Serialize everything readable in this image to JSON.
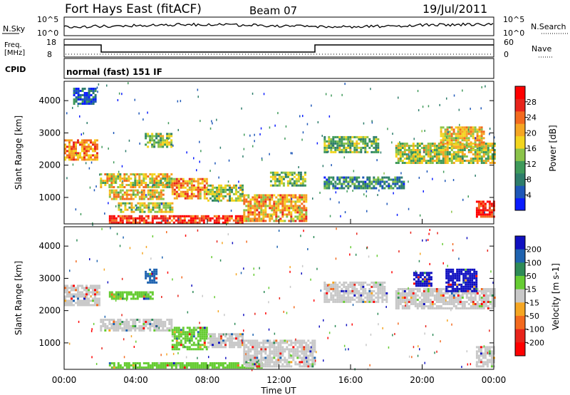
{
  "header": {
    "title": "Fort Hays East (fitACF)",
    "beam": "Beam 07",
    "date": "19/Jul/2011"
  },
  "panels": {
    "nsky": {
      "label": "N.Sky",
      "tick_top": "10^5",
      "tick_bottom": "10^0"
    },
    "nsearch": {
      "label": "N.Search",
      "tick_top": "10^5",
      "tick_bottom": "10^0"
    },
    "freq": {
      "label_line1": "Freq.",
      "label_line2": "[MHz]",
      "tick_top": "18",
      "tick_bottom": "8"
    },
    "nave": {
      "label": "Nave",
      "tick_top": "60",
      "tick_bottom": "0"
    },
    "cpid": {
      "label": "CPID",
      "text": "normal (fast) 151 IF"
    }
  },
  "chart_data": [
    {
      "type": "heatmap",
      "name": "power",
      "ylabel": "Slant Range [km]",
      "xlabel": "Time UT",
      "yticks": [
        "1000",
        "2000",
        "3000",
        "4000"
      ],
      "ytick_values": [
        1000,
        2000,
        3000,
        4000
      ],
      "ylim": [
        180,
        4600
      ],
      "xticks": [
        "00:00",
        "04:00",
        "08:00",
        "12:00",
        "16:00",
        "20:00",
        "00:00"
      ],
      "xlim_hours": [
        0,
        24
      ],
      "colorbar": {
        "label": "Power [dB]",
        "ticks": [
          "4",
          "8",
          "12",
          "16",
          "20",
          "24",
          "28"
        ],
        "colors": [
          "#0a1cff",
          "#1e57b8",
          "#2e7d6b",
          "#3f9a5a",
          "#8bc34a",
          "#f2d51e",
          "#f5a623",
          "#f36a1e",
          "#e8241b",
          "#ff0000"
        ]
      },
      "regions": [
        {
          "t0": 0.0,
          "t1": 1.9,
          "r0": 2200,
          "r1": 2800,
          "level": 0.72
        },
        {
          "t0": 0.5,
          "t1": 1.8,
          "r0": 3900,
          "r1": 4400,
          "level": 0.15
        },
        {
          "t0": 2.0,
          "t1": 6.0,
          "r0": 1350,
          "r1": 1750,
          "level": 0.55
        },
        {
          "t0": 2.5,
          "t1": 5.5,
          "r0": 950,
          "r1": 1250,
          "level": 0.6
        },
        {
          "t0": 3.0,
          "t1": 6.0,
          "r0": 550,
          "r1": 850,
          "level": 0.5
        },
        {
          "t0": 4.5,
          "t1": 6.0,
          "r0": 2600,
          "r1": 3000,
          "level": 0.45
        },
        {
          "t0": 6.0,
          "t1": 8.0,
          "r0": 1000,
          "r1": 1600,
          "level": 0.7
        },
        {
          "t0": 8.0,
          "t1": 10.0,
          "r0": 900,
          "r1": 1400,
          "level": 0.45
        },
        {
          "t0": 2.5,
          "t1": 10.0,
          "r0": 250,
          "r1": 450,
          "level": 0.9
        },
        {
          "t0": 10.0,
          "t1": 13.5,
          "r0": 300,
          "r1": 1100,
          "level": 0.65
        },
        {
          "t0": 11.5,
          "t1": 13.5,
          "r0": 1400,
          "r1": 1800,
          "level": 0.4
        },
        {
          "t0": 14.5,
          "t1": 17.5,
          "r0": 2400,
          "r1": 2900,
          "level": 0.4
        },
        {
          "t0": 14.5,
          "t1": 19.0,
          "r0": 1300,
          "r1": 1650,
          "level": 0.25
        },
        {
          "t0": 18.5,
          "t1": 24.0,
          "r0": 2100,
          "r1": 2700,
          "level": 0.5
        },
        {
          "t0": 21.0,
          "t1": 23.5,
          "r0": 2600,
          "r1": 3200,
          "level": 0.6
        },
        {
          "t0": 23.0,
          "t1": 24.0,
          "r0": 400,
          "r1": 900,
          "level": 0.95
        }
      ]
    },
    {
      "type": "heatmap",
      "name": "velocity",
      "ylabel": "Slant Range [km]",
      "xlabel": "Time UT",
      "yticks": [
        "1000",
        "2000",
        "3000",
        "4000"
      ],
      "ytick_values": [
        1000,
        2000,
        3000,
        4000
      ],
      "ylim": [
        180,
        4600
      ],
      "xticks": [
        "00:00",
        "04:00",
        "08:00",
        "12:00",
        "16:00",
        "20:00",
        "00:00"
      ],
      "xlim_hours": [
        0,
        24
      ],
      "colorbar": {
        "label": "Velocity [m s-1]",
        "ticks": [
          "200",
          "100",
          "50",
          "15",
          "-15",
          "-50",
          "-100",
          "-200"
        ],
        "colors": [
          "#1010c0",
          "#1f63b0",
          "#2e8b57",
          "#66cc33",
          "#c8c8c8",
          "#f5a623",
          "#f36a1e",
          "#e8241b",
          "#ff0000"
        ]
      },
      "regions": [
        {
          "t0": 0.0,
          "t1": 2.0,
          "r0": 2200,
          "r1": 2800,
          "color": "#c8c8c8"
        },
        {
          "t0": 2.0,
          "t1": 6.0,
          "r0": 1400,
          "r1": 1750,
          "color": "#c8c8c8"
        },
        {
          "t0": 2.5,
          "t1": 5.0,
          "r0": 2400,
          "r1": 2600,
          "color": "#66cc33"
        },
        {
          "t0": 4.5,
          "t1": 5.2,
          "r0": 2900,
          "r1": 3300,
          "color": "#1f63b0"
        },
        {
          "t0": 6.0,
          "t1": 8.0,
          "r0": 800,
          "r1": 1500,
          "color": "#66cc33"
        },
        {
          "t0": 8.0,
          "t1": 10.0,
          "r0": 900,
          "r1": 1300,
          "color": "#c8c8c8"
        },
        {
          "t0": 2.5,
          "t1": 11.0,
          "r0": 250,
          "r1": 400,
          "color": "#66cc33"
        },
        {
          "t0": 10.0,
          "t1": 14.0,
          "r0": 300,
          "r1": 1100,
          "color": "#c8c8c8"
        },
        {
          "t0": 14.5,
          "t1": 18.0,
          "r0": 2300,
          "r1": 2900,
          "color": "#c8c8c8"
        },
        {
          "t0": 18.5,
          "t1": 24.0,
          "r0": 2100,
          "r1": 2700,
          "color": "#c8c8c8"
        },
        {
          "t0": 19.5,
          "t1": 20.5,
          "r0": 2800,
          "r1": 3200,
          "color": "#1010c0"
        },
        {
          "t0": 21.3,
          "t1": 23.0,
          "r0": 2600,
          "r1": 3300,
          "color": "#1010c0"
        },
        {
          "t0": 23.0,
          "t1": 24.0,
          "r0": 300,
          "r1": 900,
          "color": "#c8c8c8"
        }
      ]
    }
  ]
}
